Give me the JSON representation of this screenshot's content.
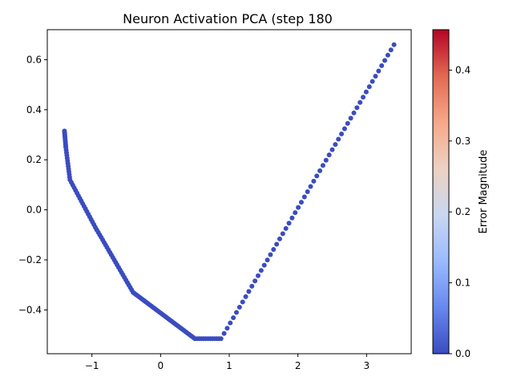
{
  "chart_data": {
    "type": "scatter",
    "title": "Neuron Activation PCA (step 180",
    "xlabel": "",
    "ylabel": "",
    "xlim": [
      -1.65,
      3.65
    ],
    "ylim": [
      -0.575,
      0.72
    ],
    "xticks": [
      -1,
      0,
      1,
      2,
      3
    ],
    "yticks": [
      -0.4,
      -0.2,
      0.0,
      0.2,
      0.4,
      0.6
    ],
    "x_tick_labels": [
      "−1",
      "0",
      "1",
      "2",
      "3"
    ],
    "y_tick_labels": [
      "−0.4",
      "−0.2",
      "0.0",
      "0.2",
      "0.4",
      "0.6"
    ],
    "grid": false,
    "point_color": "#3b4cc0",
    "segments": [
      {
        "from": [
          -1.4,
          0.315
        ],
        "to": [
          -1.38,
          0.25
        ],
        "n": 10
      },
      {
        "from": [
          -1.38,
          0.25
        ],
        "to": [
          -1.32,
          0.12
        ],
        "n": 12
      },
      {
        "from": [
          -1.32,
          0.12
        ],
        "to": [
          -0.95,
          -0.07
        ],
        "n": 18
      },
      {
        "from": [
          -0.95,
          -0.07
        ],
        "to": [
          -0.4,
          -0.33
        ],
        "n": 26
      },
      {
        "from": [
          -0.4,
          -0.33
        ],
        "to": [
          0.5,
          -0.515
        ],
        "n": 40
      },
      {
        "from": [
          0.5,
          -0.515
        ],
        "to": [
          0.88,
          -0.515
        ],
        "n": 12
      },
      {
        "from": [
          0.88,
          -0.515
        ],
        "to": [
          3.4,
          0.66
        ],
        "n": 56
      }
    ],
    "colorbar": {
      "label": "Error Magnitude",
      "cmap": "coolwarm",
      "range": [
        0.0,
        0.457
      ],
      "ticks": [
        0.0,
        0.1,
        0.2,
        0.3,
        0.4
      ],
      "tick_labels": [
        "0.0",
        "0.1",
        "0.2",
        "0.3",
        "0.4"
      ],
      "color_stops": [
        "#3b4cc0",
        "#6788ee",
        "#9abbff",
        "#c9d7f0",
        "#edd1c2",
        "#f7a889",
        "#e26952",
        "#b40426"
      ]
    }
  }
}
